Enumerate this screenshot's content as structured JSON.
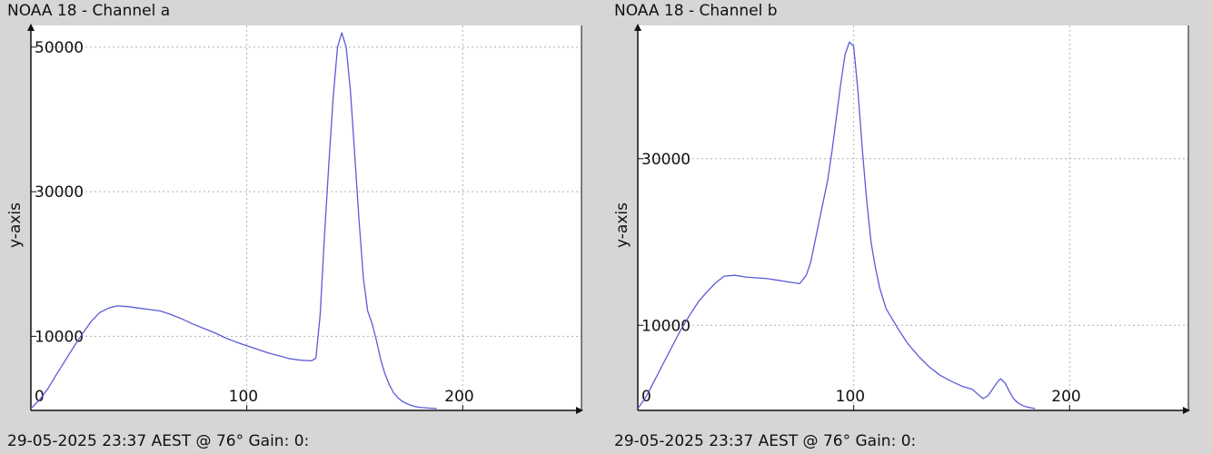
{
  "chart_data": [
    {
      "type": "line",
      "title": "NOAA 18 - Channel a",
      "footer": "29-05-2025 23:37 AEST @ 76° Gain: 0:",
      "xlabel": "",
      "ylabel": "y-axis",
      "xlim": [
        0,
        255
      ],
      "ylim": [
        0,
        53000
      ],
      "xticks": [
        0,
        100,
        200
      ],
      "yticks": [
        10000,
        30000,
        50000
      ],
      "grid": true,
      "color": "#5b5bd6",
      "series": [
        {
          "x": [
            0,
            4,
            8,
            12,
            16,
            20,
            24,
            28,
            32,
            36,
            40,
            45,
            50,
            55,
            60,
            65,
            70,
            75,
            80,
            85,
            90,
            95,
            100,
            105,
            110,
            115,
            120,
            125,
            130,
            132,
            134,
            136,
            138,
            140,
            142,
            144,
            146,
            148,
            150,
            152,
            154,
            156,
            158,
            160,
            162,
            164,
            166,
            168,
            170,
            172,
            174,
            176,
            178,
            180,
            184,
            188
          ],
          "y": [
            0,
            1200,
            2800,
            4800,
            6700,
            8600,
            10400,
            12100,
            13300,
            13900,
            14200,
            14100,
            13900,
            13700,
            13500,
            13000,
            12400,
            11700,
            11100,
            10500,
            9800,
            9200,
            8700,
            8200,
            7700,
            7300,
            6900,
            6700,
            6600,
            7000,
            13000,
            24000,
            34000,
            43000,
            50000,
            52000,
            50000,
            44000,
            35000,
            26000,
            18000,
            13500,
            11800,
            9500,
            6800,
            4800,
            3300,
            2200,
            1500,
            1000,
            700,
            450,
            280,
            180,
            80,
            0
          ]
        }
      ]
    },
    {
      "type": "line",
      "title": "NOAA 18 - Channel b",
      "footer": "29-05-2025 23:37 AEST @ 76° Gain: 0:",
      "xlabel": "",
      "ylabel": "y-axis",
      "xlim": [
        0,
        255
      ],
      "ylim": [
        0,
        46000
      ],
      "xticks": [
        0,
        100,
        200
      ],
      "yticks": [
        10000,
        30000
      ],
      "grid": true,
      "color": "#5b5bd6",
      "series": [
        {
          "x": [
            0,
            4,
            8,
            12,
            16,
            20,
            24,
            28,
            32,
            36,
            40,
            45,
            50,
            55,
            60,
            65,
            70,
            75,
            78,
            80,
            82,
            84,
            86,
            88,
            90,
            92,
            94,
            96,
            98,
            100,
            102,
            104,
            106,
            108,
            110,
            112,
            115,
            120,
            125,
            130,
            135,
            140,
            145,
            150,
            155,
            158,
            160,
            162,
            164,
            166,
            168,
            170,
            172,
            174,
            176,
            178,
            180,
            184
          ],
          "y": [
            0,
            1500,
            3500,
            5500,
            7500,
            9500,
            11200,
            12800,
            14000,
            15100,
            15900,
            16000,
            15800,
            15700,
            15600,
            15400,
            15200,
            15000,
            16000,
            17500,
            20000,
            22500,
            25000,
            27500,
            31000,
            35000,
            39000,
            42500,
            44000,
            43500,
            38000,
            31000,
            25000,
            20000,
            17000,
            14500,
            12000,
            9800,
            7800,
            6300,
            5000,
            4000,
            3300,
            2700,
            2300,
            1600,
            1200,
            1500,
            2200,
            3000,
            3600,
            3100,
            2100,
            1200,
            700,
            400,
            200,
            0
          ]
        }
      ]
    }
  ]
}
